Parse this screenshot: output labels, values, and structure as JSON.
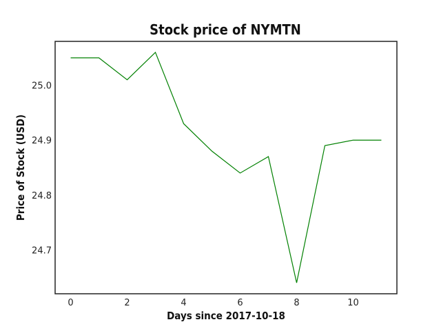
{
  "chart_data": {
    "type": "line",
    "title": "Stock price of NYMTN",
    "xlabel": "Days since 2017-10-18",
    "ylabel": "Price of Stock (USD)",
    "xlim": [
      -0.55,
      11.55
    ],
    "ylim": [
      24.62,
      25.08
    ],
    "x_ticks": [
      0,
      2,
      4,
      6,
      8,
      10
    ],
    "x_tick_labels": [
      "0",
      "2",
      "4",
      "6",
      "8",
      "10"
    ],
    "y_ticks": [
      24.7,
      24.8,
      24.9,
      25.0
    ],
    "y_tick_labels": [
      "24.7",
      "24.8",
      "24.9",
      "25.0"
    ],
    "grid": false,
    "series": [
      {
        "color": "#008000",
        "x": [
          0,
          1,
          2,
          3,
          4,
          5,
          6,
          7,
          8,
          9,
          10,
          11
        ],
        "y": [
          25.05,
          25.05,
          25.01,
          25.06,
          24.93,
          24.88,
          24.84,
          24.87,
          24.64,
          24.89,
          24.9,
          24.9
        ]
      }
    ]
  }
}
